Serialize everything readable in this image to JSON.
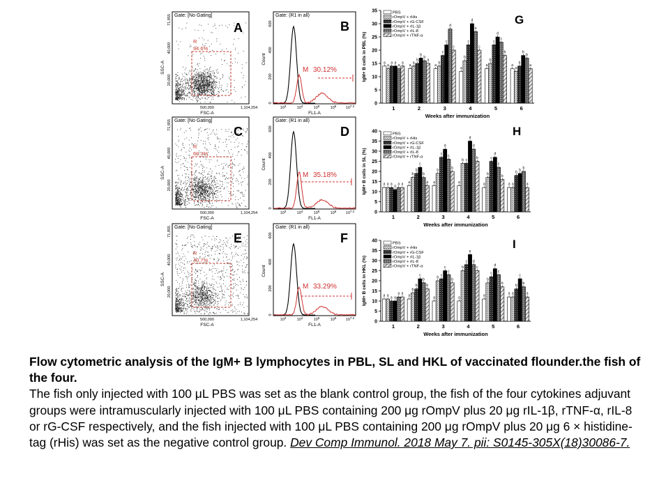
{
  "caption": {
    "title": "Flow cytometric analysis of the IgM+ B lymphocytes in PBL, SL and HKL of vaccinated flounder.the fish of the four.",
    "body": "The fish only injected with 100 μL PBS was set as the blank control group, the fish of the four cytokines adjuvant groups were intramuscularly injected with 100 μL PBS containing 200 μg rOmpV plus 20 μg rIL-1β, rTNF-α, rIL-8 or rG-CSF respectively, and the fish injected with 100 μL PBS containing 200 μg rOmpV plus 20 μg 6 × histidine-tag (rHis) was set as the negative control group.",
    "citation": "Dev Comp Immunol. 2018 May 7. pii: S0145-305X(18)30086-7."
  },
  "scatter_panels": [
    {
      "letter": "A",
      "gate": "Gate: [No Gating]",
      "r_label": "R",
      "r_pct": "94.6%",
      "ymax": "71,855",
      "y40": "40,000",
      "y20": "20,000",
      "ylabel": "SSC-A",
      "x500": "500,000",
      "xmax": "1,104,254",
      "xlabel": "FSC-A"
    },
    {
      "letter": "C",
      "gate": "Gate: [No Gating]",
      "r_label": "R",
      "r_pct": "60.3%",
      "ymax": "71,855",
      "y40": "40,000",
      "y20": "20,000",
      "ylabel": "SSC-A",
      "x500": "500,000",
      "xmax": "1,104,254",
      "xlabel": "FSC-A"
    },
    {
      "letter": "E",
      "gate": "Gate: [No Gating]",
      "r_label": "R",
      "r_pct": "40.7%",
      "ymax": "71,855",
      "y40": "40,000",
      "y20": "20,000",
      "ylabel": "SSC-A",
      "x500": "500,000",
      "xmax": "1,104,254",
      "xlabel": "FSC-A"
    }
  ],
  "histogram_panels": [
    {
      "letter": "B",
      "gate": "Gate: (R1 in all)",
      "m_label": "M",
      "m_pct": "30.12%",
      "ylabel": "Count",
      "xlabel": "FL1-A"
    },
    {
      "letter": "D",
      "gate": "Gate: (R1 in all)",
      "m_label": "M",
      "m_pct": "35.18%",
      "ylabel": "Count",
      "xlabel": "FL1-A"
    },
    {
      "letter": "F",
      "gate": "Gate: (R1 in all)",
      "m_label": "M",
      "m_pct": "33.29%",
      "ylabel": "Count",
      "xlabel": "FL1-A"
    }
  ],
  "hist_axis": {
    "y": [
      "0",
      "200",
      "400",
      "600"
    ],
    "x_exp": [
      "3",
      "4",
      "5",
      "6",
      "7.2"
    ],
    "x_base": "10"
  },
  "legend_entries": [
    "PBS",
    "rOmpV + rHis",
    "rOmpV + rG-CSF",
    "rOmpV + rIL-1β",
    "rOmpV + rIL-8",
    "rOmpV + rTNF-α"
  ],
  "colors": {
    "PBS": "#ffffff",
    "rHis": "#bdbdbd",
    "rGCSF": "#3a3a3a",
    "rIL1b": "#000000",
    "rIL8": "#7a7a7a",
    "rTNFa": "#d2d2d2",
    "gate": "#c0392b",
    "hist_red": "#d03030"
  },
  "chart_data": [
    {
      "type": "bar",
      "panel": "G",
      "ylabel": "IgM+ B cells in PBL (%)",
      "xlabel": "Weeks after immunization",
      "categories": [
        "1",
        "2",
        "3",
        "4",
        "5",
        "6"
      ],
      "ylim": [
        0,
        35
      ],
      "yticks": [
        "0",
        "5",
        "10",
        "15",
        "20",
        "25",
        "30",
        "35"
      ],
      "series": [
        {
          "name": "PBS",
          "values": [
            14,
            13,
            13,
            12,
            13,
            13
          ],
          "letters": [
            "a",
            "a",
            "a",
            "a",
            "a",
            "a"
          ]
        },
        {
          "name": "rOmpV + rHis",
          "values": [
            13,
            14,
            14,
            16,
            15,
            12
          ],
          "letters": [
            "a",
            "a",
            "b",
            "b",
            "b",
            "a"
          ]
        },
        {
          "name": "rOmpV + rG-CSF",
          "values": [
            14,
            15,
            18,
            22,
            22,
            14
          ],
          "letters": [
            "a",
            "b",
            "c",
            "c",
            "c",
            "b"
          ]
        },
        {
          "name": "rOmpV + rIL-1β",
          "values": [
            14,
            17,
            22,
            30,
            25,
            18
          ],
          "letters": [
            "a",
            "b",
            "c",
            "d",
            "d",
            "b"
          ]
        },
        {
          "name": "rOmpV + rIL-8",
          "values": [
            13,
            16,
            28,
            27,
            23,
            17
          ],
          "letters": [
            "a",
            "b",
            "d",
            "e",
            "c",
            "b"
          ]
        },
        {
          "name": "rOmpV + rTNF-α",
          "values": [
            14,
            15,
            20,
            20,
            18,
            13
          ],
          "letters": [
            "a",
            "a",
            "c",
            "c",
            "b",
            "a"
          ]
        }
      ]
    },
    {
      "type": "bar",
      "panel": "H",
      "ylabel": "IgM+ B cells in SL (%)",
      "xlabel": "Weeks after immunization",
      "categories": [
        "1",
        "2",
        "3",
        "4",
        "5",
        "6"
      ],
      "ylim": [
        0,
        40
      ],
      "yticks": [
        "0",
        "5",
        "10",
        "15",
        "20",
        "25",
        "30",
        "35",
        "40"
      ],
      "series": [
        {
          "name": "PBS",
          "values": [
            12,
            13,
            13,
            13,
            12,
            12
          ],
          "letters": [
            "a",
            "a",
            "a",
            "a",
            "a",
            "a"
          ]
        },
        {
          "name": "rOmpV + rHis",
          "values": [
            12,
            17,
            19,
            24,
            17,
            12
          ],
          "letters": [
            "a",
            "b",
            "b",
            "b",
            "b",
            "a"
          ]
        },
        {
          "name": "rOmpV + rG-CSF",
          "values": [
            12,
            19,
            27,
            24,
            25,
            18
          ],
          "letters": [
            "a",
            "b",
            "c",
            "c",
            "c",
            "b"
          ]
        },
        {
          "name": "rOmpV + rIL-1β",
          "values": [
            11,
            22,
            31,
            35,
            27,
            19
          ],
          "letters": [
            "a",
            "c",
            "d",
            "d",
            "d",
            "b"
          ]
        },
        {
          "name": "rOmpV + rIL-8",
          "values": [
            12,
            17,
            26,
            31,
            22,
            20
          ],
          "letters": [
            "a",
            "b",
            "c",
            "d",
            "c",
            "b"
          ]
        },
        {
          "name": "rOmpV + rTNF-α",
          "values": [
            12,
            13,
            20,
            25,
            16,
            12
          ],
          "letters": [
            "a",
            "a",
            "b",
            "b",
            "b",
            "a"
          ]
        }
      ]
    },
    {
      "type": "bar",
      "panel": "I",
      "ylabel": "IgM+ B cells in HKL (%)",
      "xlabel": "Weeks after immunization",
      "categories": [
        "1",
        "2",
        "3",
        "4",
        "5",
        "6"
      ],
      "ylim": [
        0,
        40
      ],
      "yticks": [
        "0",
        "5",
        "10",
        "15",
        "20",
        "25",
        "30",
        "35",
        "40"
      ],
      "series": [
        {
          "name": "PBS",
          "values": [
            11,
            11,
            10,
            10,
            11,
            12
          ],
          "letters": [
            "a",
            "a",
            "a",
            "a",
            "a",
            "a"
          ]
        },
        {
          "name": "rOmpV + rHis",
          "values": [
            11,
            14,
            20,
            25,
            19,
            12
          ],
          "letters": [
            "a",
            "b",
            "b",
            "b",
            "b",
            "a"
          ]
        },
        {
          "name": "rOmpV + rG-CSF",
          "values": [
            10,
            16,
            21,
            28,
            22,
            16
          ],
          "letters": [
            "a",
            "b",
            "c",
            "c",
            "c",
            "b"
          ]
        },
        {
          "name": "rOmpV + rIL-1β",
          "values": [
            10,
            21,
            25,
            33,
            26,
            21
          ],
          "letters": [
            "a",
            "c",
            "c",
            "e",
            "d",
            "c"
          ]
        },
        {
          "name": "rOmpV + rIL-8",
          "values": [
            12,
            19,
            23,
            28,
            23,
            17
          ],
          "letters": [
            "a",
            "b",
            "c",
            "d",
            "c",
            "b"
          ]
        },
        {
          "name": "rOmpV + rTNF-α",
          "values": [
            12,
            16,
            19,
            25,
            17,
            12
          ],
          "letters": [
            "a",
            "b",
            "b",
            "c",
            "b",
            "a"
          ]
        }
      ]
    }
  ]
}
